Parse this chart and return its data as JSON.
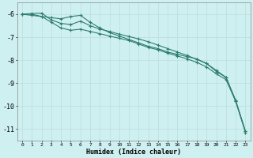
{
  "xlabel": "Humidex (Indice chaleur)",
  "background_color": "#cff0f0",
  "grid_color": "#c0e0e0",
  "line_color": "#2e7d6e",
  "x_ticks": [
    0,
    1,
    2,
    3,
    4,
    5,
    6,
    7,
    8,
    9,
    10,
    11,
    12,
    13,
    14,
    15,
    16,
    17,
    18,
    19,
    20,
    21,
    22,
    23
  ],
  "y_ticks": [
    -6,
    -7,
    -8,
    -9,
    -10,
    -11
  ],
  "xlim": [
    -0.5,
    23.5
  ],
  "ylim": [
    -11.5,
    -5.5
  ],
  "line1_x": [
    0,
    1,
    2,
    3,
    4,
    5,
    6,
    7,
    8,
    9,
    10,
    11,
    12,
    13,
    14,
    15,
    16,
    17,
    18,
    19,
    20,
    21,
    22,
    23
  ],
  "line1_y": [
    -6.0,
    -6.0,
    -6.1,
    -6.15,
    -6.2,
    -6.1,
    -6.05,
    -6.35,
    -6.6,
    -6.8,
    -6.95,
    -7.1,
    -7.25,
    -7.4,
    -7.5,
    -7.65,
    -7.75,
    -7.85,
    -7.95,
    -8.15,
    -8.5,
    -8.75,
    -9.8,
    -11.15
  ],
  "line2_x": [
    0,
    1,
    2,
    3,
    4,
    5,
    6,
    7,
    8,
    9,
    10,
    11,
    12,
    13,
    14,
    15,
    16,
    17,
    18,
    19,
    20,
    21,
    22,
    23
  ],
  "line2_y": [
    -6.0,
    -5.97,
    -5.95,
    -6.25,
    -6.4,
    -6.45,
    -6.3,
    -6.5,
    -6.65,
    -6.75,
    -6.87,
    -6.97,
    -7.08,
    -7.2,
    -7.35,
    -7.5,
    -7.65,
    -7.8,
    -7.97,
    -8.15,
    -8.45,
    -8.75,
    -9.75,
    -11.1
  ],
  "line3_x": [
    0,
    1,
    2,
    3,
    4,
    5,
    6,
    7,
    8,
    9,
    10,
    11,
    12,
    13,
    14,
    15,
    16,
    17,
    18,
    19,
    20,
    21,
    22,
    23
  ],
  "line3_y": [
    -6.0,
    -6.05,
    -6.1,
    -6.35,
    -6.6,
    -6.7,
    -6.65,
    -6.75,
    -6.85,
    -6.95,
    -7.05,
    -7.15,
    -7.3,
    -7.45,
    -7.55,
    -7.7,
    -7.82,
    -7.95,
    -8.1,
    -8.3,
    -8.6,
    -8.85,
    -9.8,
    -11.1
  ]
}
